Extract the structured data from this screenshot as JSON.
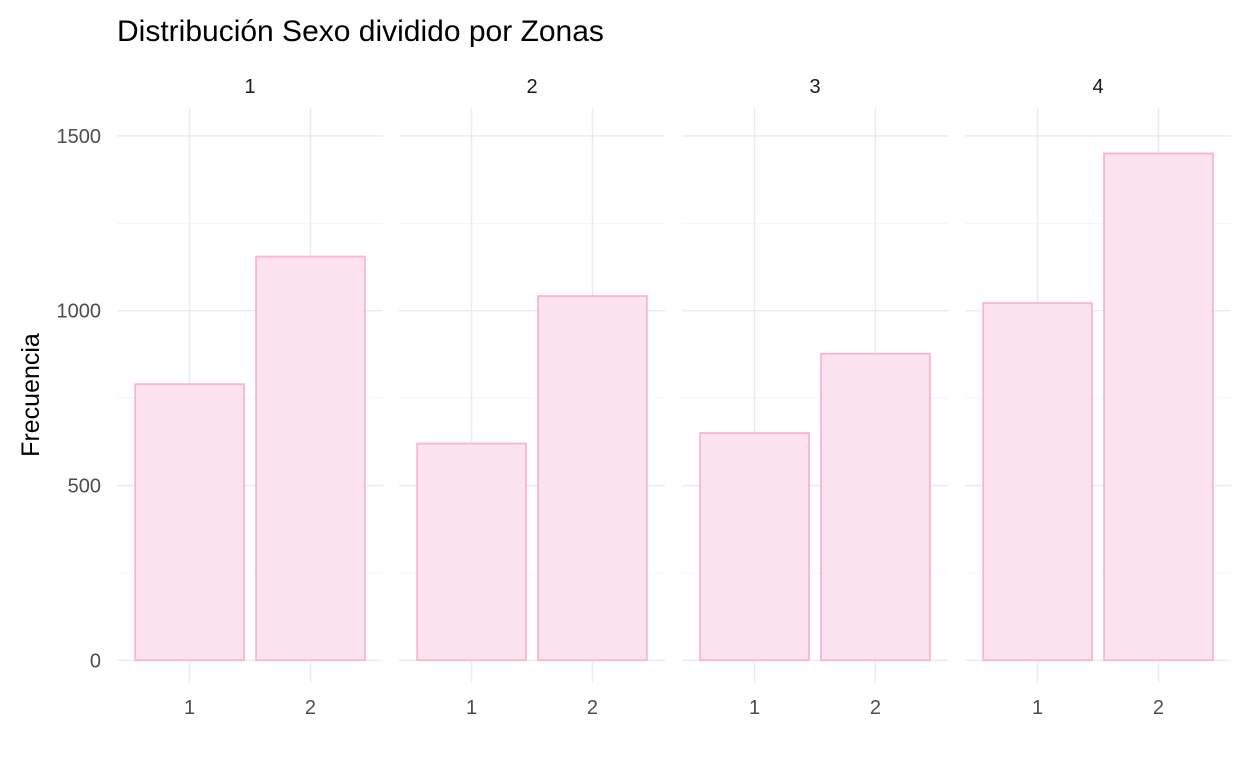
{
  "chart_data": {
    "type": "bar",
    "title": "Distribución Sexo dividido por Zonas",
    "xlabel": "",
    "ylabel": "Frecuencia",
    "ylim": [
      -65,
      1580
    ],
    "y_ticks": [
      0,
      500,
      1000,
      1500
    ],
    "y_tick_labels": [
      "0",
      "500",
      "1000",
      "1500"
    ],
    "categories": [
      "1",
      "2"
    ],
    "facets": [
      {
        "label": "1",
        "values": [
          790,
          1155
        ]
      },
      {
        "label": "2",
        "values": [
          620,
          1042
        ]
      },
      {
        "label": "3",
        "values": [
          650,
          877
        ]
      },
      {
        "label": "4",
        "values": [
          1022,
          1450
        ]
      }
    ],
    "bar_fill": "#fde3ee",
    "bar_stroke": "#fbb4d1",
    "grid": true,
    "legend": "none"
  }
}
